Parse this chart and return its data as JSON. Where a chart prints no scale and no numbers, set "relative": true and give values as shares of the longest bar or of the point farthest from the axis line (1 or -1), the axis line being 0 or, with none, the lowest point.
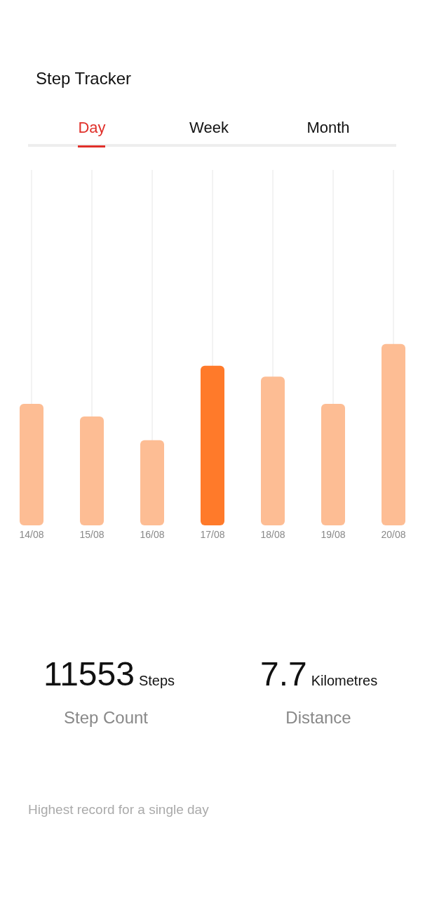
{
  "chart_data": {
    "type": "bar",
    "title": "Step Tracker",
    "relative": true,
    "grid": "x",
    "categories": [
      "14/08",
      "15/08",
      "16/08",
      "17/08",
      "18/08",
      "19/08",
      "20/08"
    ],
    "values": [
      0.67,
      0.6,
      0.47,
      0.88,
      0.82,
      0.67,
      1
    ],
    "colors": [
      "#fdbd94",
      "#fdbd94",
      "#fdbd94",
      "#ff7a2a",
      "#fdbd94",
      "#fdbd94",
      "#fdbd94"
    ],
    "annotations": [
      "Day",
      "Week",
      "Month",
      "11553",
      "Steps",
      "Step Count",
      "7.7",
      "Kilometres",
      "Distance",
      "Highest record for a single day"
    ]
  }
}
